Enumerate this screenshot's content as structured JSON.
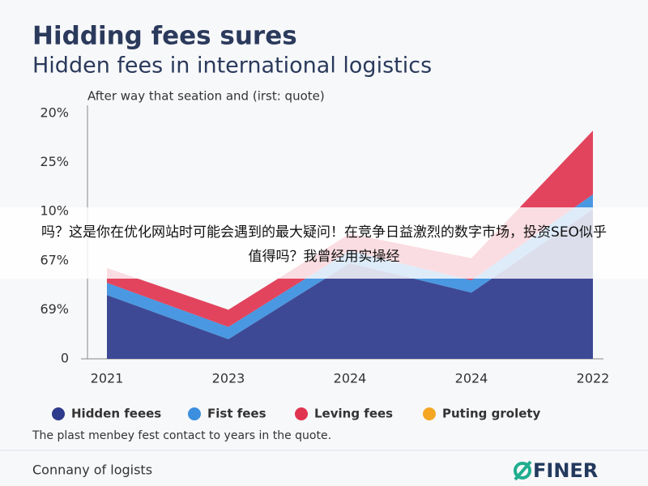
{
  "chart_data": {
    "type": "area",
    "title": "Hidding fees sures",
    "subtitle": "Hidden fees in international logistics",
    "axis_note": "After way that seation and (irst: quote)",
    "categories": [
      "2021",
      "2023",
      "2024",
      "2024",
      "2022"
    ],
    "series": [
      {
        "name": "Hidden feees",
        "color": "#2e3a8c",
        "values": [
          1.3,
          0.4,
          1.95,
          1.35,
          3.05
        ]
      },
      {
        "name": "Fist fees",
        "color": "#3b8fde",
        "values": [
          0.25,
          0.25,
          0.25,
          0.25,
          0.3
        ]
      },
      {
        "name": "Leving fees",
        "color": "#e0344f",
        "values": [
          0.3,
          0.35,
          0.35,
          0.45,
          1.3
        ]
      }
    ],
    "extra_legend": [
      {
        "name": "Puting grolety",
        "color": "#f5a623"
      }
    ],
    "stacked": true,
    "grid": false,
    "ylim": [
      0,
      5
    ],
    "yticks": [
      0,
      {
        "value": 1,
        "label": "69%"
      },
      {
        "value": 2,
        "label": "67%"
      },
      {
        "value": 3,
        "label": "10%"
      },
      {
        "value": 4,
        "label": "25%"
      },
      {
        "value": 5,
        "label": "20%"
      }
    ],
    "note": "The plast menbey fest contact to years in the quote."
  },
  "footer": {
    "source": "Connany of logists",
    "brand": "FINER"
  },
  "overlay": {
    "lines": [
      "吗？这是你在优化网站时可能会遇到的最大疑问！在竞争日益激烈的数字市场，投资SEO似乎",
      "值得吗？我曾经用实操经"
    ]
  }
}
